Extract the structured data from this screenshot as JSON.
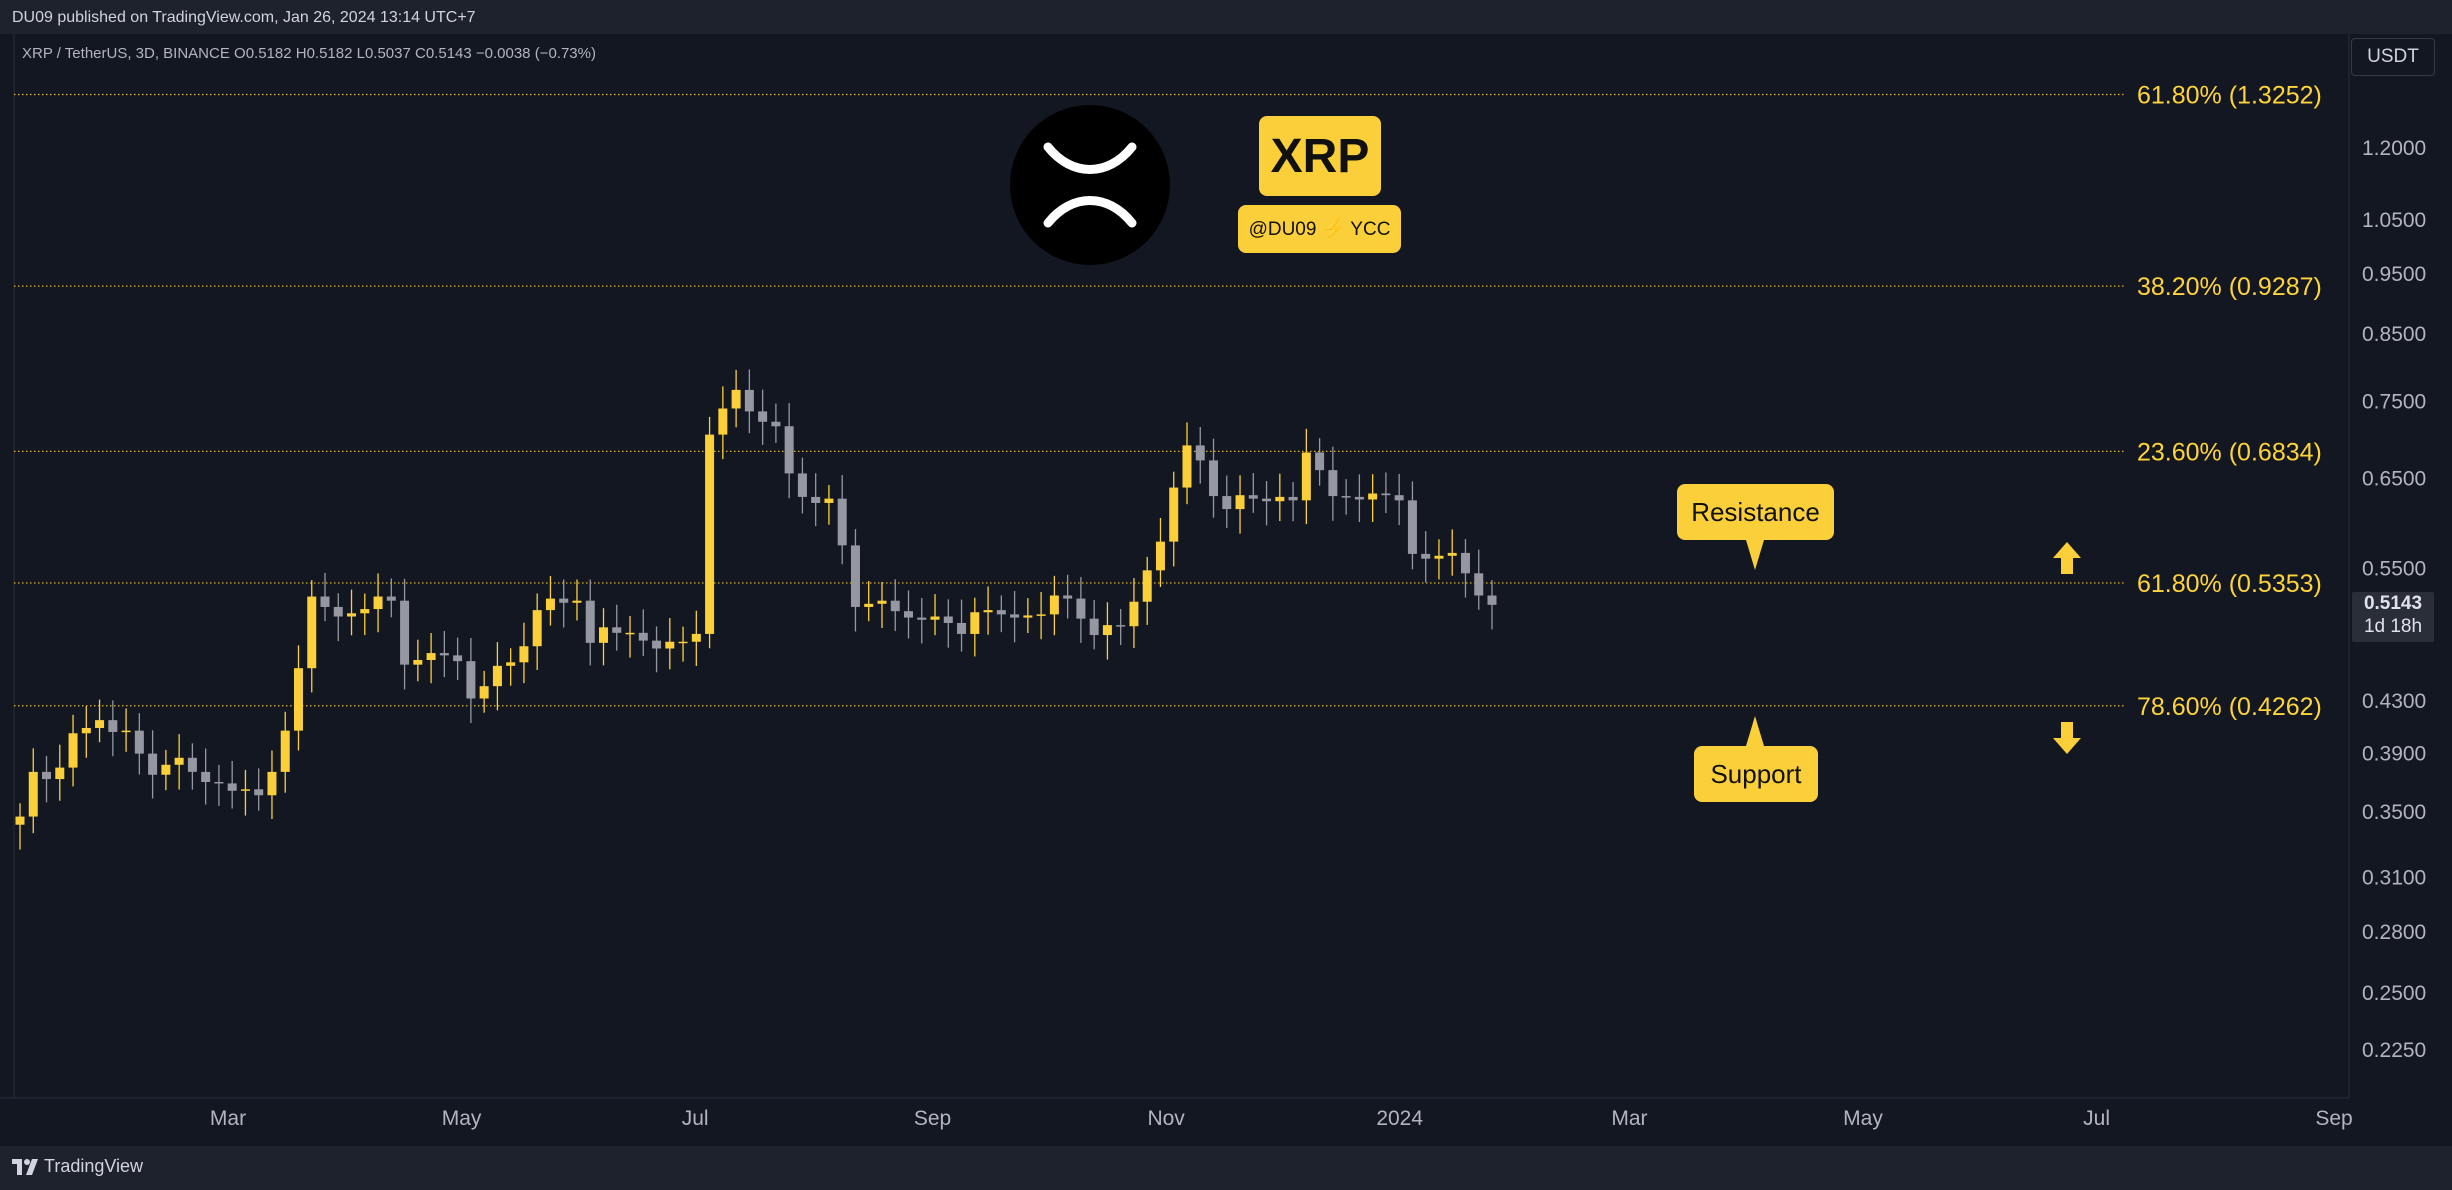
{
  "header": {
    "published": "DU09 published on TradingView.com, Jan 26, 2024 13:14 UTC+7"
  },
  "legend": {
    "text": "XRP / TetherUS, 3D, BINANCE  O0.5182  H0.5182  L0.5037  C0.5143  −0.0038 (−0.73%)"
  },
  "currency": "USDT",
  "price_tag": {
    "price": "0.5143",
    "countdown": "1d 18h"
  },
  "footer": {
    "brand": "TradingView"
  },
  "badge": {
    "title": "XRP",
    "subtitle": "@DU09 ⚡ YCC"
  },
  "annotations": {
    "resistance": "Resistance",
    "support": "Support"
  },
  "colors": {
    "background": "#131722",
    "up": "#fbcf3a",
    "down": "#9598a1",
    "fib": "#fbcf3a",
    "text": "#b2b5be"
  },
  "icons": {
    "xrp_logo": "xrp-logo-icon",
    "up_arrow": "arrow-up-icon",
    "down_arrow": "arrow-down-icon"
  },
  "chart_data": {
    "type": "candlestick",
    "scale": "log",
    "y_ticks": [
      1.2,
      1.05,
      0.95,
      0.85,
      0.75,
      0.65,
      0.55,
      0.43,
      0.39,
      0.35,
      0.31,
      0.28,
      0.25,
      0.225
    ],
    "y_tick_labels": [
      "1.2000",
      "1.0500",
      "0.9500",
      "0.8500",
      "0.7500",
      "0.6500",
      "0.5500",
      "0.4300",
      "0.3900",
      "0.3500",
      "0.3100",
      "0.2800",
      "0.2500",
      "0.2250"
    ],
    "x_ticks": [
      {
        "label": "Mar",
        "date": "2023-03-01"
      },
      {
        "label": "May",
        "date": "2023-05-01"
      },
      {
        "label": "Jul",
        "date": "2023-07-01"
      },
      {
        "label": "Sep",
        "date": "2023-09-01"
      },
      {
        "label": "Nov",
        "date": "2023-11-01"
      },
      {
        "label": "2024",
        "date": "2024-01-01"
      },
      {
        "label": "Mar",
        "date": "2024-03-01"
      },
      {
        "label": "May",
        "date": "2024-05-01"
      },
      {
        "label": "Jul",
        "date": "2024-07-01"
      },
      {
        "label": "Sep",
        "date": "2024-09-01"
      }
    ],
    "fib_levels": [
      {
        "label": "61.80% (1.3252)",
        "value": 1.3252
      },
      {
        "label": "38.20% (0.9287)",
        "value": 0.9287
      },
      {
        "label": "23.60% (0.6834)",
        "value": 0.6834
      },
      {
        "label": "61.80% (0.5353)",
        "value": 0.5353
      },
      {
        "label": "78.60% (0.4262)",
        "value": 0.4262
      }
    ],
    "closes": [
      0.347,
      0.377,
      0.372,
      0.38,
      0.405,
      0.409,
      0.415,
      0.406,
      0.407,
      0.39,
      0.375,
      0.382,
      0.387,
      0.377,
      0.37,
      0.369,
      0.364,
      0.365,
      0.361,
      0.377,
      0.407,
      0.457,
      0.522,
      0.512,
      0.503,
      0.506,
      0.51,
      0.522,
      0.518,
      0.46,
      0.464,
      0.47,
      0.468,
      0.463,
      0.432,
      0.442,
      0.459,
      0.462,
      0.476,
      0.509,
      0.52,
      0.516,
      0.518,
      0.479,
      0.493,
      0.488,
      0.488,
      0.481,
      0.474,
      0.48,
      0.48,
      0.487,
      0.705,
      0.74,
      0.766,
      0.736,
      0.722,
      0.716,
      0.656,
      0.628,
      0.621,
      0.626,
      0.574,
      0.512,
      0.515,
      0.518,
      0.508,
      0.502,
      0.5,
      0.503,
      0.497,
      0.487,
      0.507,
      0.509,
      0.505,
      0.502,
      0.504,
      0.505,
      0.523,
      0.52,
      0.501,
      0.486,
      0.495,
      0.494,
      0.517,
      0.548,
      0.578,
      0.639,
      0.691,
      0.672,
      0.629,
      0.614,
      0.63,
      0.626,
      0.623,
      0.628,
      0.624,
      0.682,
      0.66,
      0.629,
      0.628,
      0.625,
      0.632,
      0.63,
      0.624,
      0.565,
      0.56,
      0.563,
      0.566,
      0.545,
      0.523,
      0.514
    ]
  }
}
